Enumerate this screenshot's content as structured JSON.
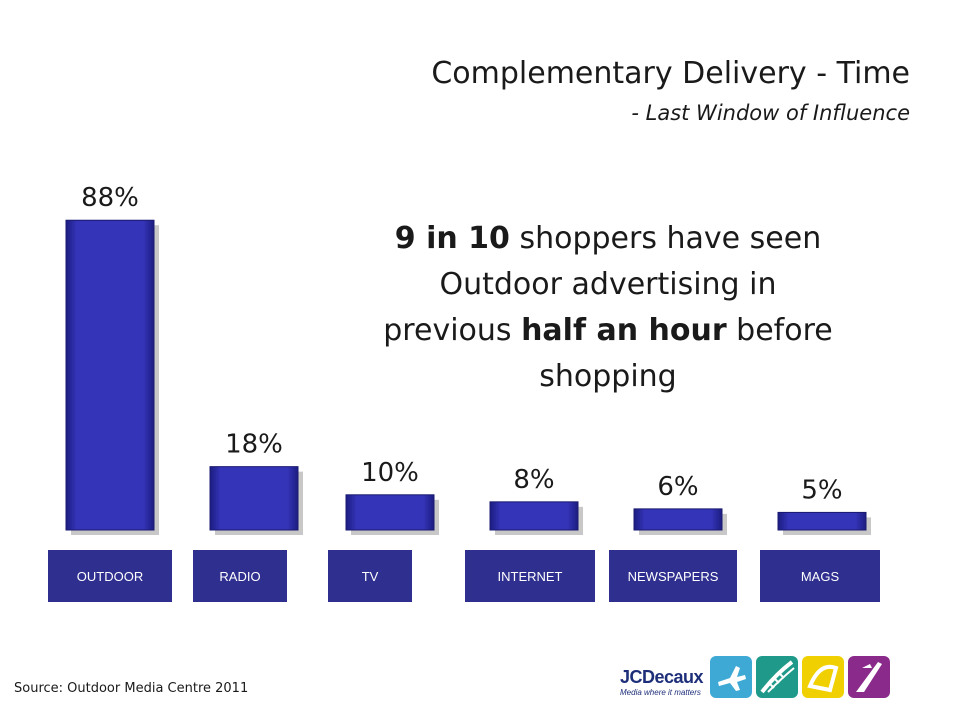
{
  "title": "Complementary Delivery - Time",
  "subtitle": "- Last Window of Influence",
  "callout": {
    "part1_bold": "9 in 10",
    "part2": " shoppers have seen Outdoor advertising in previous ",
    "part3_bold": "half an hour",
    "part4": " before shopping"
  },
  "source": "Source: Outdoor Media Centre 2011",
  "logo": {
    "name": "JCDecaux",
    "tagline": "Media where it matters"
  },
  "colors": {
    "bar": "#3434b8",
    "bar_dark": "#1c1c80",
    "label_box": "#2f2f8f",
    "label_text": "#ffffff"
  },
  "chart_data": {
    "type": "bar",
    "categories": [
      "OUTDOOR",
      "RADIO",
      "TV",
      "INTERNET",
      "NEWSPAPERS",
      "MAGS"
    ],
    "values": [
      88,
      18,
      10,
      8,
      6,
      5
    ],
    "data_labels": [
      "88%",
      "18%",
      "10%",
      "8%",
      "6%",
      "5%"
    ],
    "ylim": [
      0,
      100
    ],
    "grid": false,
    "legend": "none"
  }
}
